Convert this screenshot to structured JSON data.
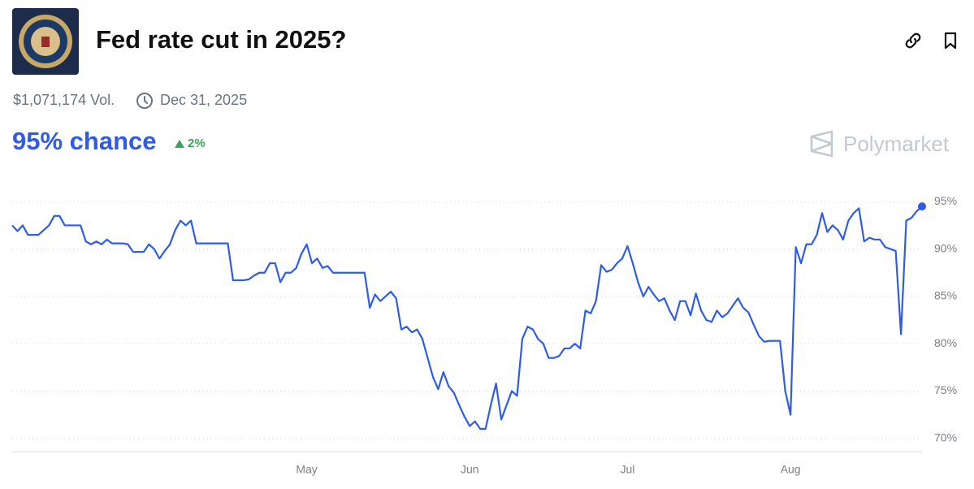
{
  "header": {
    "title": "Fed rate cut in 2025?",
    "volume": "$1,071,174 Vol.",
    "end_date": "Dec 31, 2025",
    "chance": "95% chance",
    "change": "2%",
    "brand": "Polymarket"
  },
  "chart_data": {
    "type": "line",
    "categories": [
      null,
      null,
      null,
      null,
      null,
      null,
      null,
      null,
      null,
      null,
      null,
      null,
      null,
      null,
      null,
      null,
      null,
      null,
      null,
      null,
      null,
      null,
      null,
      null,
      null,
      null,
      null,
      null,
      null,
      null,
      null,
      null,
      null,
      null,
      null,
      null,
      null,
      null,
      null,
      null,
      null,
      null,
      null,
      null,
      null,
      null,
      null,
      null,
      null,
      null,
      null,
      null,
      null,
      null,
      null,
      null,
      "May",
      null,
      null,
      null,
      null,
      null,
      null,
      null,
      null,
      null,
      null,
      null,
      null,
      null,
      null,
      null,
      null,
      null,
      null,
      null,
      null,
      null,
      null,
      null,
      null,
      null,
      null,
      null,
      null,
      null,
      null,
      "Jun",
      null,
      null,
      null,
      null,
      null,
      null,
      null,
      null,
      null,
      null,
      null,
      null,
      null,
      null,
      null,
      null,
      null,
      null,
      null,
      null,
      null,
      null,
      null,
      null,
      null,
      null,
      null,
      null,
      null,
      "Jul",
      null,
      null,
      null,
      null,
      null,
      null,
      null,
      null,
      null,
      null,
      null,
      null,
      null,
      null,
      null,
      null,
      null,
      null,
      null,
      null,
      null,
      null,
      null,
      null,
      null,
      null,
      null,
      null,
      null,
      null,
      "Aug",
      null,
      null,
      null,
      null,
      null,
      null,
      null,
      null,
      null,
      null,
      null,
      null,
      null,
      null,
      null,
      null,
      null,
      null,
      null,
      null,
      null,
      null,
      null,
      null,
      null
    ],
    "series": [
      {
        "color": "#2e5ce6",
        "values": [
          92.5,
          91.9,
          92.5,
          91.5,
          91.5,
          91.5,
          92.0,
          92.5,
          93.5,
          93.5,
          92.5,
          92.5,
          92.5,
          92.5,
          90.8,
          90.5,
          90.8,
          90.5,
          91.0,
          90.6,
          90.6,
          90.6,
          90.5,
          89.7,
          89.7,
          89.7,
          90.5,
          90.0,
          89.0,
          89.8,
          90.5,
          92.0,
          93.0,
          92.5,
          93.0,
          90.6,
          90.6,
          90.6,
          90.6,
          90.6,
          90.6,
          90.6,
          86.7,
          86.7,
          86.7,
          86.8,
          87.2,
          87.5,
          87.5,
          88.5,
          88.5,
          86.5,
          87.5,
          87.5,
          88.0,
          89.5,
          90.5,
          88.5,
          89.0,
          88.0,
          88.2,
          87.5,
          87.5,
          87.5,
          87.5,
          87.5,
          87.5,
          87.5,
          83.8,
          85.2,
          84.5,
          85.0,
          85.5,
          84.8,
          81.5,
          81.8,
          81.2,
          81.5,
          80.5,
          78.5,
          76.5,
          75.2,
          77.0,
          75.5,
          74.8,
          73.5,
          72.3,
          71.3,
          71.8,
          71.0,
          71.0,
          73.5,
          75.8,
          72.0,
          73.5,
          75.0,
          74.5,
          80.5,
          81.8,
          81.5,
          80.5,
          80.0,
          78.5,
          78.5,
          78.7,
          79.5,
          79.5,
          80.0,
          79.5,
          83.5,
          83.2,
          84.5,
          88.3,
          87.6,
          87.8,
          88.5,
          89.0,
          90.3,
          88.5,
          86.5,
          85.0,
          86.0,
          85.2,
          84.5,
          84.8,
          83.5,
          82.5,
          84.5,
          84.5,
          83.0,
          85.3,
          83.5,
          82.5,
          82.3,
          83.5,
          82.8,
          83.2,
          84.0,
          84.8,
          83.8,
          83.3,
          82.0,
          80.8,
          80.2,
          80.3,
          80.3,
          80.3,
          75.0,
          72.5,
          90.2,
          88.5,
          90.5,
          90.5,
          91.5,
          93.8,
          91.8,
          92.5,
          92.0,
          91.0,
          93.0,
          93.8,
          94.3,
          90.8,
          91.2,
          91.0,
          91.0,
          90.2,
          90.0,
          89.8,
          81.0,
          93.0,
          93.3,
          94.0,
          94.5
        ]
      }
    ],
    "ylim": [
      68.6,
      97
    ],
    "yticks": [
      {
        "value": 70,
        "label": "70%"
      },
      {
        "value": 75,
        "label": "75%"
      },
      {
        "value": 80,
        "label": "80%"
      },
      {
        "value": 85,
        "label": "85%"
      },
      {
        "value": 90,
        "label": "90%"
      },
      {
        "value": 95,
        "label": "95%"
      }
    ],
    "grid": true
  }
}
